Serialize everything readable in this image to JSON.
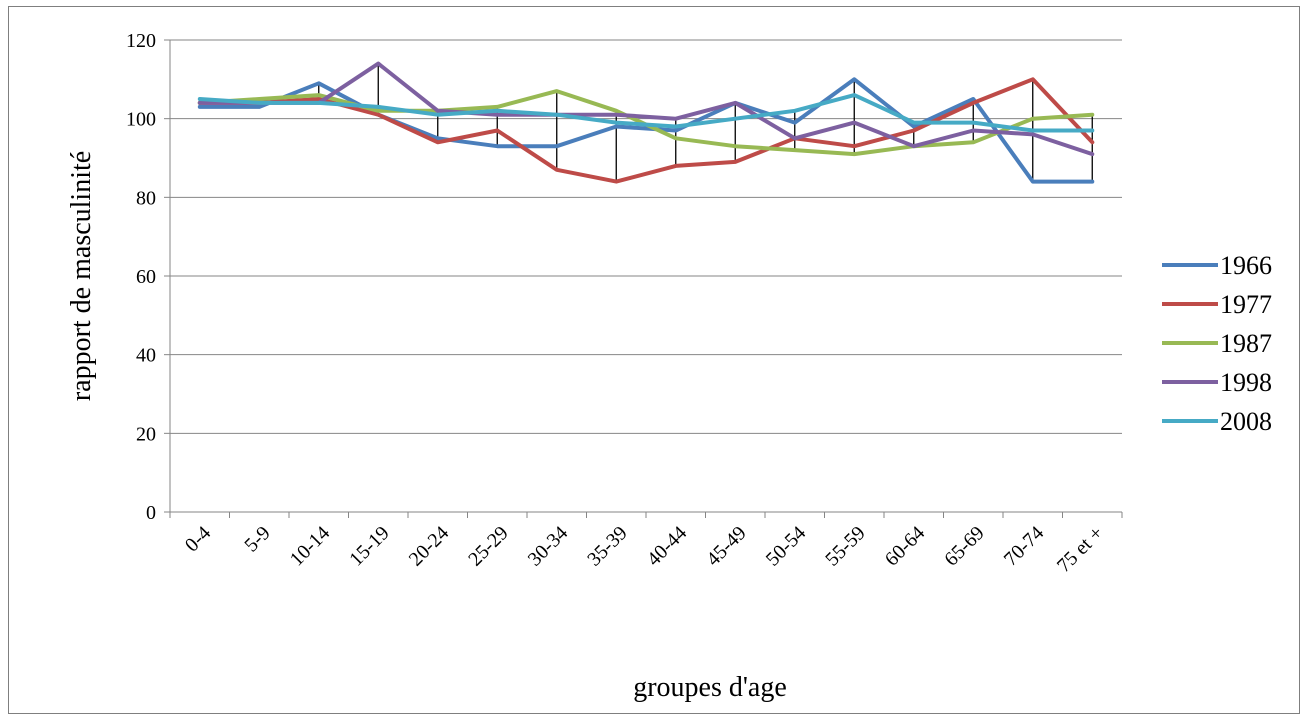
{
  "chart_data": {
    "type": "line",
    "title": "",
    "xlabel": "groupes d'age",
    "ylabel": "rapport de masculinité",
    "ylim": [
      0,
      120
    ],
    "yticks": [
      0,
      20,
      40,
      60,
      80,
      100,
      120
    ],
    "grid": true,
    "legend_position": "right",
    "high_low_lines": true,
    "categories": [
      "0-4",
      "5-9",
      "10-14",
      "15-19",
      "20-24",
      "25-29",
      "30-34",
      "35-39",
      "40-44",
      "45-49",
      "50-54",
      "55-59",
      "60-64",
      "65-69",
      "70-74",
      "75 et +"
    ],
    "series": [
      {
        "name": "1966",
        "color": "#4a7ebb",
        "values": [
          103,
          103,
          109,
          101,
          95,
          93,
          93,
          98,
          97,
          104,
          99,
          110,
          98,
          105,
          84,
          84
        ]
      },
      {
        "name": "1977",
        "color": "#be4b48",
        "values": [
          104,
          104,
          105,
          101,
          94,
          97,
          87,
          84,
          88,
          89,
          95,
          93,
          97,
          104,
          110,
          94
        ]
      },
      {
        "name": "1987",
        "color": "#98b954",
        "values": [
          104,
          105,
          106,
          102,
          102,
          103,
          107,
          102,
          95,
          93,
          92,
          91,
          93,
          94,
          100,
          101
        ]
      },
      {
        "name": "1998",
        "color": "#7d60a0",
        "values": [
          104,
          104,
          104,
          114,
          102,
          101,
          101,
          101,
          100,
          104,
          95,
          99,
          93,
          97,
          96,
          91
        ]
      },
      {
        "name": "2008",
        "color": "#46aac5",
        "values": [
          105,
          104,
          104,
          103,
          101,
          102,
          101,
          99,
          98,
          100,
          102,
          106,
          99,
          99,
          97,
          97
        ]
      }
    ]
  }
}
